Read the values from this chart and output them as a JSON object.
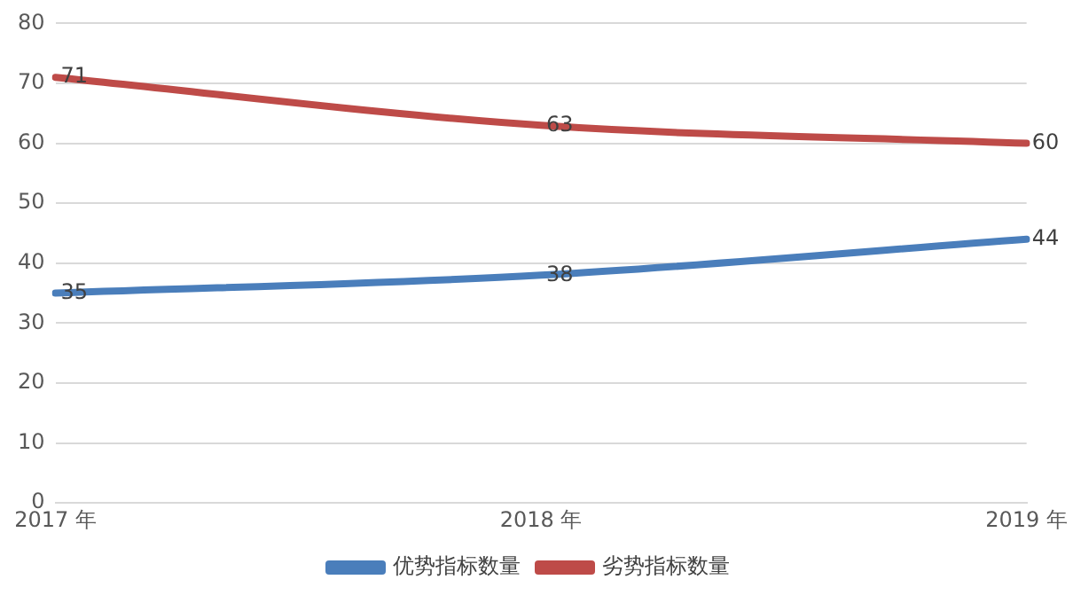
{
  "chart_data": {
    "type": "line",
    "categories": [
      "2017 年",
      "2018 年",
      "2019 年"
    ],
    "series": [
      {
        "name": "优势指标数量",
        "color": "#4a7ebb",
        "values": [
          35,
          38,
          44
        ]
      },
      {
        "name": "劣势指标数量",
        "color": "#be4b48",
        "values": [
          71,
          63,
          60
        ]
      }
    ],
    "ylim": [
      0,
      80
    ],
    "yticks": [
      0,
      10,
      20,
      30,
      40,
      50,
      60,
      70,
      80
    ],
    "grid": "y",
    "legend": "bottom",
    "data_labels": true,
    "marker": "none",
    "line_style": "solid"
  }
}
